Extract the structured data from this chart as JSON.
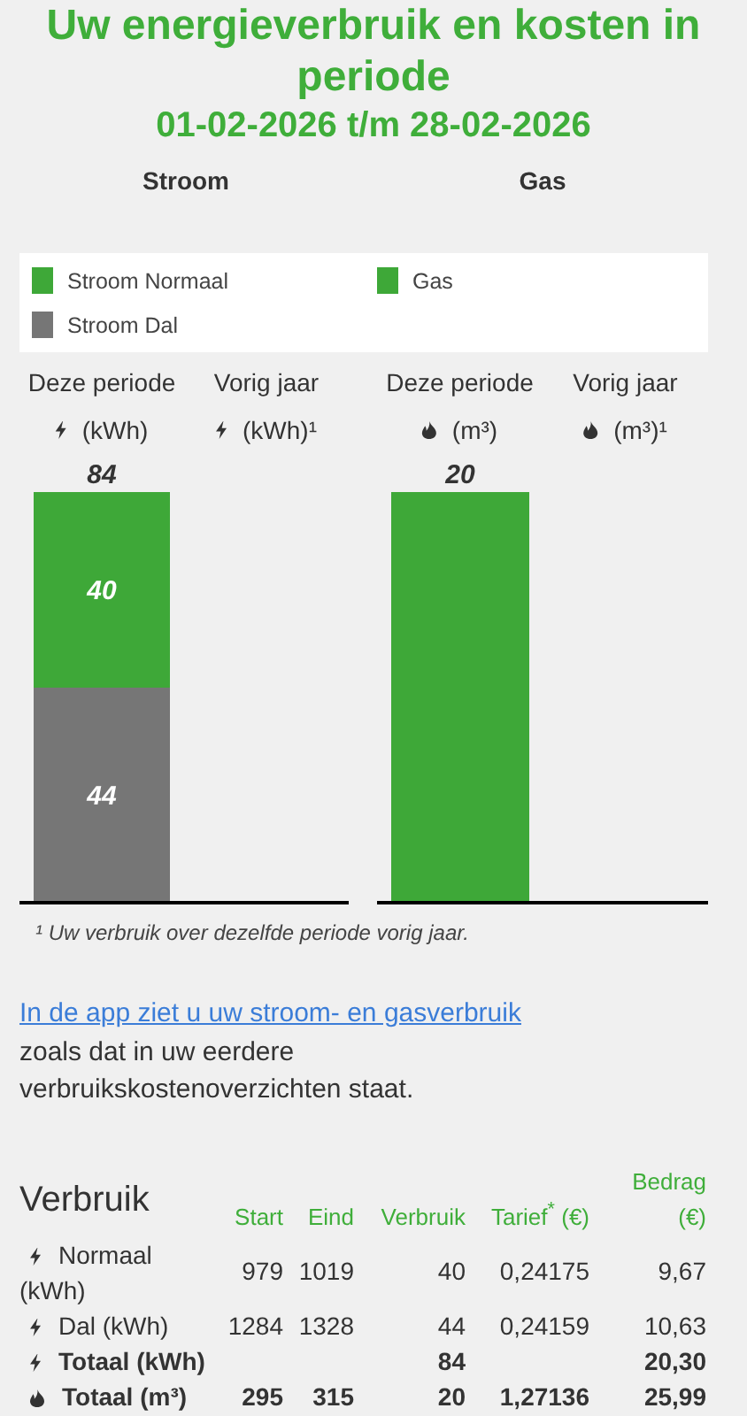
{
  "chart_data": [
    {
      "type": "other",
      "title": "Uw energieverbruik en kosten in periode",
      "subtitle": "01-02-2026 t/m 28-02-2026"
    },
    {
      "type": "bar",
      "title": "Stroom",
      "categories": [
        "Deze periode\n(kWh)",
        "Vorig jaar\n(kWh)¹"
      ],
      "stacked": true,
      "series": [
        {
          "name": "Stroom Dal",
          "color": "#767676",
          "values": [
            44,
            null
          ]
        },
        {
          "name": "Stroom Normaal",
          "color": "#3ea838",
          "values": [
            40,
            null
          ]
        }
      ],
      "data_labels": true,
      "totals": [
        "84",
        null
      ],
      "legend": "top",
      "tick_labels": "x"
    },
    {
      "type": "bar",
      "title": "Gas",
      "categories": [
        "Deze periode\n(m³)",
        "Vorig jaar\n(m³)¹"
      ],
      "series": [
        {
          "name": "Gas",
          "color": "#3ea838",
          "values": [
            20,
            null
          ]
        }
      ],
      "data_labels": true,
      "legend": "top",
      "tick_labels": "x"
    },
    {
      "type": "other",
      "annotations": [
        "¹ Uw verbruik over dezelfde periode vorig jaar.",
        "In de app ziet u uw stroom- en gasverbruik",
        "zoals dat in uw eerdere verbruikskostenoverzichten staat."
      ],
      "title": "Verbruik",
      "categories": [
        "Start",
        "Eind",
        "Verbruik",
        "Tarief$^{*}$ (€)",
        "Bedrag (€)"
      ],
      "y_categories": [
        "Normaal (kWh)",
        "Dal (kWh)",
        "Totaal (kWh)",
        "Totaal (m³)"
      ],
      "cell_labels": [
        [
          "979",
          "1019",
          "40",
          "0,24175",
          "9,67"
        ],
        [
          "1284",
          "1328",
          "44",
          "0,24159",
          "10,63"
        ],
        [
          null,
          null,
          "84",
          null,
          "20,30"
        ],
        [
          "295",
          "315",
          "20",
          "1,27136",
          "25,99"
        ]
      ]
    }
  ]
}
